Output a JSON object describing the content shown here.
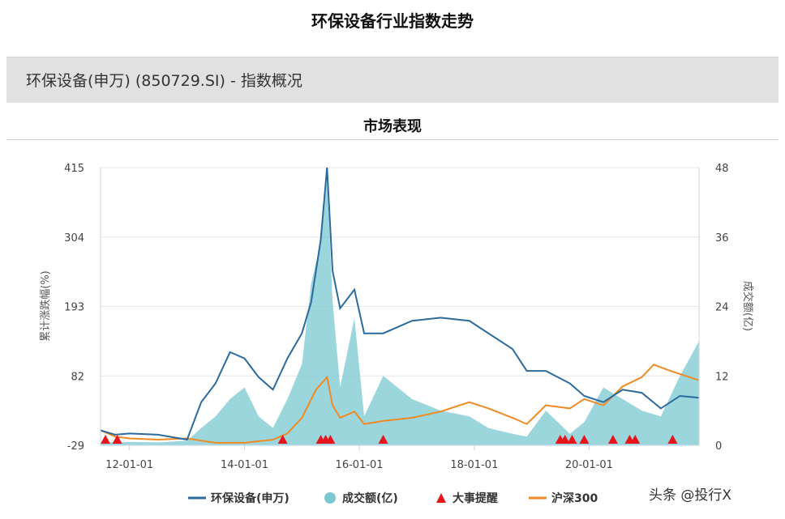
{
  "page_title": "环保设备行业指数走势",
  "banner_text": "环保设备(申万) (850729.SI) - 指数概况",
  "section_title": "市场表现",
  "watermark": "头条 @投行X",
  "chart_data": {
    "type": "line",
    "ylabel": "累计涨跌幅(%)",
    "y2label": "成交额(亿)",
    "x_ticks": [
      "12-01-01",
      "14-01-01",
      "16-01-01",
      "18-01-01",
      "20-01-01"
    ],
    "x_range": [
      "2011-07-01",
      "2021-11-30"
    ],
    "y_ticks": [
      415,
      304,
      193,
      82,
      -29
    ],
    "ylim": [
      -29,
      415
    ],
    "y2_ticks": [
      48,
      36,
      24,
      12,
      0
    ],
    "y2lim": [
      0,
      48
    ],
    "grid": true,
    "legend_position": "bottom",
    "colors": {
      "index": "#2b6a9c",
      "volume": "#79c8d2",
      "events": "#e8141c",
      "hs300": "#f08a24"
    },
    "series": [
      {
        "name": "环保设备(申万)",
        "type": "line",
        "axis": "left",
        "points": [
          [
            "2011-07-01",
            -5
          ],
          [
            "2011-10-01",
            -12
          ],
          [
            "2012-01-01",
            -10
          ],
          [
            "2012-07-01",
            -12
          ],
          [
            "2013-01-01",
            -20
          ],
          [
            "2013-04-01",
            40
          ],
          [
            "2013-07-01",
            70
          ],
          [
            "2013-10-01",
            120
          ],
          [
            "2014-01-01",
            110
          ],
          [
            "2014-04-01",
            80
          ],
          [
            "2014-07-01",
            60
          ],
          [
            "2014-10-01",
            110
          ],
          [
            "2015-01-01",
            150
          ],
          [
            "2015-03-01",
            200
          ],
          [
            "2015-05-01",
            300
          ],
          [
            "2015-06-10",
            415
          ],
          [
            "2015-07-15",
            250
          ],
          [
            "2015-09-01",
            190
          ],
          [
            "2015-12-01",
            220
          ],
          [
            "2016-02-01",
            150
          ],
          [
            "2016-06-01",
            150
          ],
          [
            "2016-12-01",
            170
          ],
          [
            "2017-06-01",
            175
          ],
          [
            "2017-12-01",
            170
          ],
          [
            "2018-04-01",
            150
          ],
          [
            "2018-09-01",
            125
          ],
          [
            "2018-12-01",
            90
          ],
          [
            "2019-04-01",
            90
          ],
          [
            "2019-09-01",
            70
          ],
          [
            "2019-12-01",
            50
          ],
          [
            "2020-04-01",
            40
          ],
          [
            "2020-08-01",
            60
          ],
          [
            "2020-12-01",
            55
          ],
          [
            "2021-04-01",
            30
          ],
          [
            "2021-08-01",
            50
          ],
          [
            "2021-11-30",
            47
          ]
        ]
      },
      {
        "name": "成交额(亿)",
        "type": "area",
        "axis": "right",
        "points": [
          [
            "2011-07-01",
            0.5
          ],
          [
            "2012-01-01",
            0.6
          ],
          [
            "2012-07-01",
            0.5
          ],
          [
            "2013-01-01",
            0.8
          ],
          [
            "2013-04-01",
            3
          ],
          [
            "2013-07-01",
            5
          ],
          [
            "2013-10-01",
            8
          ],
          [
            "2014-01-01",
            10
          ],
          [
            "2014-04-01",
            5
          ],
          [
            "2014-07-01",
            3
          ],
          [
            "2014-10-01",
            8
          ],
          [
            "2015-01-01",
            14
          ],
          [
            "2015-03-01",
            28
          ],
          [
            "2015-05-01",
            35
          ],
          [
            "2015-06-10",
            46
          ],
          [
            "2015-07-15",
            25
          ],
          [
            "2015-09-01",
            10
          ],
          [
            "2015-12-01",
            22
          ],
          [
            "2016-02-01",
            5
          ],
          [
            "2016-06-01",
            12
          ],
          [
            "2016-12-01",
            8
          ],
          [
            "2017-06-01",
            6
          ],
          [
            "2017-12-01",
            5
          ],
          [
            "2018-04-01",
            3
          ],
          [
            "2018-09-01",
            2
          ],
          [
            "2018-12-01",
            1.5
          ],
          [
            "2019-04-01",
            6
          ],
          [
            "2019-09-01",
            2
          ],
          [
            "2019-12-01",
            4
          ],
          [
            "2020-04-01",
            10
          ],
          [
            "2020-08-01",
            8
          ],
          [
            "2020-12-01",
            6
          ],
          [
            "2021-04-01",
            5
          ],
          [
            "2021-08-01",
            12
          ],
          [
            "2021-11-30",
            18
          ]
        ]
      },
      {
        "name": "沪深300",
        "type": "line",
        "axis": "left",
        "points": [
          [
            "2011-07-01",
            -5
          ],
          [
            "2011-10-01",
            -15
          ],
          [
            "2012-01-01",
            -18
          ],
          [
            "2012-07-01",
            -20
          ],
          [
            "2013-01-01",
            -18
          ],
          [
            "2013-07-01",
            -25
          ],
          [
            "2014-01-01",
            -25
          ],
          [
            "2014-07-01",
            -20
          ],
          [
            "2014-10-01",
            -10
          ],
          [
            "2015-01-01",
            15
          ],
          [
            "2015-04-01",
            60
          ],
          [
            "2015-06-10",
            80
          ],
          [
            "2015-07-15",
            35
          ],
          [
            "2015-09-01",
            15
          ],
          [
            "2015-12-01",
            25
          ],
          [
            "2016-02-01",
            5
          ],
          [
            "2016-06-01",
            10
          ],
          [
            "2016-12-01",
            15
          ],
          [
            "2017-06-01",
            25
          ],
          [
            "2017-12-01",
            40
          ],
          [
            "2018-04-01",
            30
          ],
          [
            "2018-09-01",
            15
          ],
          [
            "2018-12-01",
            5
          ],
          [
            "2019-04-01",
            35
          ],
          [
            "2019-09-01",
            30
          ],
          [
            "2019-12-01",
            45
          ],
          [
            "2020-04-01",
            35
          ],
          [
            "2020-08-01",
            65
          ],
          [
            "2020-12-01",
            80
          ],
          [
            "2021-02-15",
            100
          ],
          [
            "2021-06-01",
            90
          ],
          [
            "2021-11-30",
            75
          ]
        ]
      }
    ],
    "events": {
      "name": "大事提醒",
      "dates": [
        "2011-08-01",
        "2011-10-15",
        "2014-09-01",
        "2015-05-01",
        "2015-06-01",
        "2015-07-01",
        "2016-06-01",
        "2019-07-01",
        "2019-08-01",
        "2019-09-15",
        "2019-12-01",
        "2020-06-01",
        "2020-09-15",
        "2020-10-20",
        "2021-06-15"
      ]
    }
  }
}
